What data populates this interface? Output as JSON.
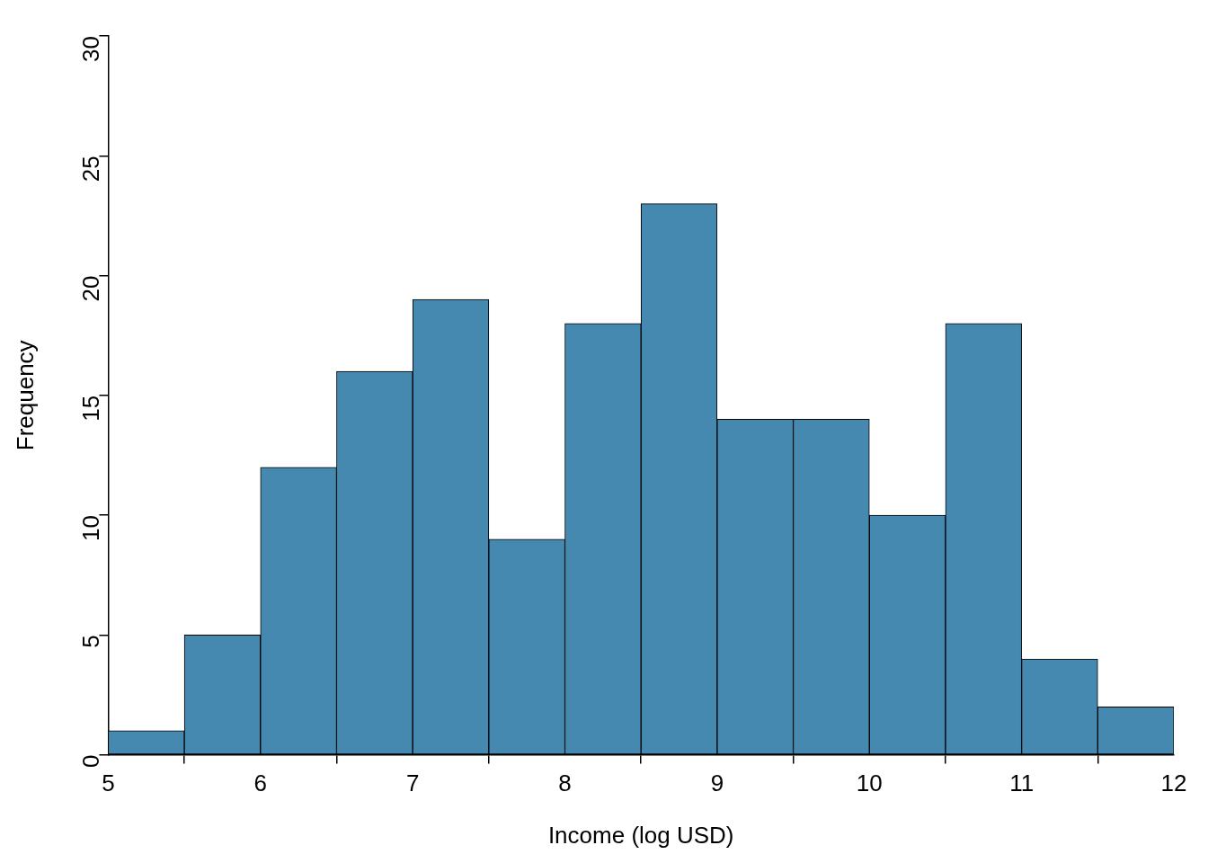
{
  "chart_data": {
    "type": "histogram",
    "xlabel": "Income (log USD)",
    "ylabel": "Frequency",
    "bins": [
      5,
      5.5,
      6,
      6.5,
      7,
      7.5,
      8,
      8.5,
      9,
      9.5,
      10,
      10.5,
      11,
      11.5,
      12
    ],
    "values": [
      1,
      5,
      12,
      16,
      19,
      9,
      18,
      23,
      14,
      14,
      10,
      18,
      4,
      2
    ],
    "color": "#4589b0",
    "xlim": [
      5,
      12
    ],
    "xticks": [
      5,
      6,
      7,
      8,
      9,
      10,
      11,
      12
    ],
    "ylim": [
      0,
      30
    ],
    "yticks": [
      0,
      5,
      10,
      15,
      20,
      25,
      30
    ],
    "grid": false
  }
}
